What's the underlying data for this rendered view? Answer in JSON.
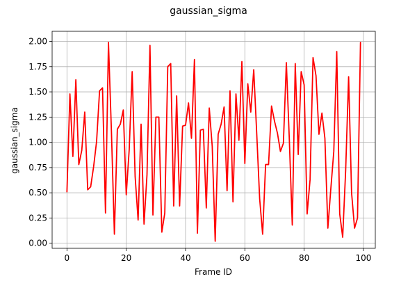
{
  "chart_data": {
    "type": "line",
    "title": "gaussian_sigma",
    "xlabel": "Frame ID",
    "ylabel": "gaussian_sigma",
    "xlim": [
      -5,
      104
    ],
    "ylim": [
      -0.05,
      2.1
    ],
    "xticks": [
      0,
      20,
      40,
      60,
      80,
      100
    ],
    "xtick_labels": [
      "0",
      "20",
      "40",
      "60",
      "80",
      "100"
    ],
    "yticks": [
      0.0,
      0.25,
      0.5,
      0.75,
      1.0,
      1.25,
      1.5,
      1.75,
      2.0
    ],
    "ytick_labels": [
      "0.00",
      "0.25",
      "0.50",
      "0.75",
      "1.00",
      "1.25",
      "1.50",
      "1.75",
      "2.00"
    ],
    "grid": true,
    "line_color": "#ff0000",
    "x": [
      0,
      1,
      2,
      3,
      4,
      5,
      6,
      7,
      8,
      9,
      10,
      11,
      12,
      13,
      14,
      15,
      16,
      17,
      18,
      19,
      20,
      21,
      22,
      23,
      24,
      25,
      26,
      27,
      28,
      29,
      30,
      31,
      32,
      33,
      34,
      35,
      36,
      37,
      38,
      39,
      40,
      41,
      42,
      43,
      44,
      45,
      46,
      47,
      48,
      49,
      50,
      51,
      52,
      53,
      54,
      55,
      56,
      57,
      58,
      59,
      60,
      61,
      62,
      63,
      64,
      65,
      66,
      67,
      68,
      69,
      70,
      71,
      72,
      73,
      74,
      75,
      76,
      77,
      78,
      79,
      80,
      81,
      82,
      83,
      84,
      85,
      86,
      87,
      88,
      89,
      90,
      91,
      92,
      93,
      94,
      95,
      96,
      97,
      98,
      99
    ],
    "y": [
      0.51,
      1.48,
      0.86,
      1.62,
      0.78,
      0.92,
      1.3,
      0.53,
      0.56,
      0.76,
      1.01,
      1.51,
      1.54,
      0.3,
      1.99,
      1.11,
      0.09,
      1.13,
      1.18,
      1.32,
      0.48,
      0.93,
      1.7,
      0.66,
      0.23,
      1.18,
      0.19,
      0.68,
      1.96,
      0.28,
      1.25,
      1.25,
      0.11,
      0.3,
      1.75,
      1.78,
      0.37,
      1.46,
      0.37,
      1.16,
      1.17,
      1.39,
      1.04,
      1.82,
      0.1,
      1.12,
      1.13,
      0.35,
      1.34,
      0.96,
      0.02,
      1.08,
      1.18,
      1.35,
      0.52,
      1.51,
      0.41,
      1.48,
      1.02,
      1.8,
      0.79,
      1.58,
      1.3,
      1.72,
      1.09,
      0.44,
      0.09,
      0.78,
      0.78,
      1.36,
      1.21,
      1.09,
      0.91,
      0.99,
      1.79,
      1.03,
      0.18,
      1.78,
      0.88,
      1.7,
      1.57,
      0.29,
      0.63,
      1.84,
      1.66,
      1.08,
      1.29,
      1.04,
      0.15,
      0.54,
      0.91,
      1.9,
      0.29,
      0.06,
      0.72,
      1.65,
      0.5,
      0.15,
      0.25,
      1.99
    ]
  }
}
